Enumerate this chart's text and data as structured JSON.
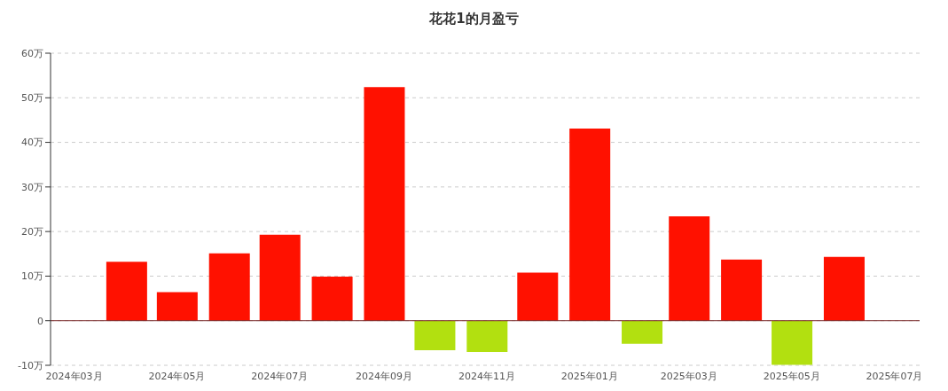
{
  "chart_data": {
    "type": "bar",
    "title": "花花1的月盈亏",
    "x": [
      "2024-04",
      "2024-05",
      "2024-06",
      "2024-07",
      "2024-08",
      "2024-09",
      "2024-10",
      "2024-11",
      "2024-12",
      "2025-01",
      "2025-02",
      "2025-03",
      "2025-04",
      "2025-05",
      "2025-06"
    ],
    "values": [
      13.2,
      6.4,
      15.1,
      19.3,
      9.9,
      52.4,
      -6.6,
      -7.0,
      10.8,
      43.1,
      -5.2,
      23.4,
      13.7,
      -9.9,
      14.3
    ],
    "colors": [
      "#ff1100",
      "#ff1100",
      "#ff1100",
      "#ff1100",
      "#ff1100",
      "#ff1100",
      "#b2e010",
      "#b2e010",
      "#ff1100",
      "#ff1100",
      "#b2e010",
      "#ff1100",
      "#ff1100",
      "#b2e010",
      "#ff1100"
    ],
    "xlim": [
      "2024-02-16",
      "2025-07-16"
    ],
    "xticks": [
      {
        "value": "2024-03",
        "label": "2024年03月"
      },
      {
        "value": "2024-05",
        "label": "2024年05月"
      },
      {
        "value": "2024-07",
        "label": "2024年07月"
      },
      {
        "value": "2024-09",
        "label": "2024年09月"
      },
      {
        "value": "2024-11",
        "label": "2024年11月"
      },
      {
        "value": "2025-01",
        "label": "2025年01月"
      },
      {
        "value": "2025-03",
        "label": "2025年03月"
      },
      {
        "value": "2025-05",
        "label": "2025年05月"
      },
      {
        "value": "2025-07",
        "label": "2025年07月"
      }
    ],
    "ylim": [
      -10,
      60
    ],
    "yticks": [
      {
        "value": -10,
        "label": "-10万"
      },
      0,
      {
        "value": 10,
        "label": "10万"
      },
      {
        "value": 20,
        "label": "20万"
      },
      {
        "value": 30,
        "label": "30万"
      },
      {
        "value": 40,
        "label": "40万"
      },
      {
        "value": 50,
        "label": "50万"
      },
      {
        "value": 60,
        "label": "60万"
      }
    ],
    "ref_lines": [
      {
        "axis": "y",
        "value": 0,
        "color": "#7a2a2a"
      }
    ],
    "grid": "y",
    "legend": false
  }
}
